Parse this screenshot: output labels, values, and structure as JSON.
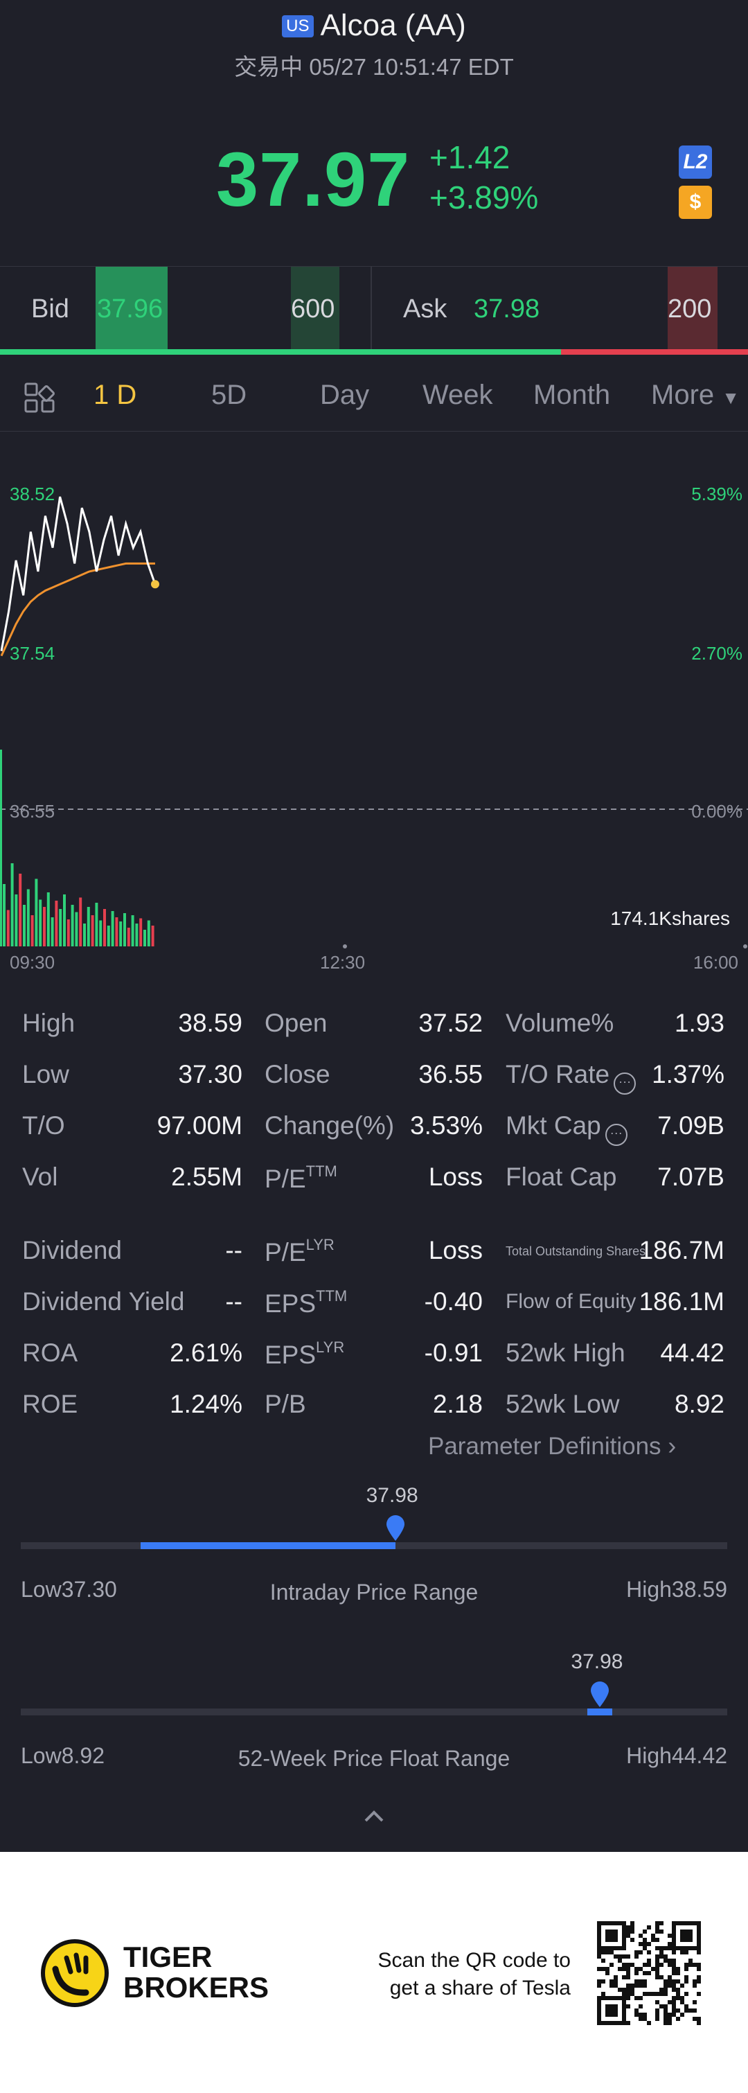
{
  "header": {
    "market_badge": "US",
    "title": "Alcoa (AA)",
    "status": "交易中 05/27 10:51:47 EDT",
    "price": "37.97",
    "change": "+1.42",
    "change_pct": "+3.89%",
    "l2_badge": "L2",
    "dollar_badge": "$",
    "up_color": "#2fd27a"
  },
  "bidask": {
    "bid_label": "Bid",
    "bid_price": "37.96",
    "bid_qty": "600",
    "ask_label": "Ask",
    "ask_price": "37.98",
    "ask_qty": "200",
    "bid_ratio": 0.75
  },
  "tabs": {
    "items": [
      "1 D",
      "5D",
      "Day",
      "Week",
      "Month",
      "More"
    ],
    "active": "1 D"
  },
  "chart_data": {
    "type": "line",
    "series": [
      {
        "values": [
          37.55,
          37.8,
          38.12,
          37.9,
          38.3,
          38.05,
          38.4,
          38.2,
          38.52,
          38.35,
          38.1,
          38.45,
          38.3,
          38.05,
          38.25,
          38.4,
          38.15,
          38.35,
          38.2,
          38.3,
          38.1,
          37.97
        ]
      },
      {
        "values": [
          37.52,
          37.62,
          37.72,
          37.8,
          37.86,
          37.9,
          37.93,
          37.95,
          37.97,
          37.99,
          38.01,
          38.03,
          38.05,
          38.06,
          38.07,
          38.08,
          38.09,
          38.1,
          38.1,
          38.1,
          38.1,
          38.1
        ]
      }
    ],
    "high_label": "38.52",
    "low_label": "37.54",
    "prev_close_label": "36.55",
    "right_top": "5.39%",
    "right_mid": "2.70%",
    "right_base": "0.00%",
    "volume_label": "174.1Kshares",
    "x_ticks": [
      "09:30",
      "12:30",
      "16:00"
    ],
    "volume_bars": [
      60,
      35,
      80,
      50,
      70,
      40,
      55,
      30,
      65,
      45,
      38,
      52,
      28,
      44,
      36,
      50,
      26,
      40,
      33,
      47,
      22,
      38,
      30,
      42,
      25,
      36,
      20,
      34,
      28,
      24,
      32,
      18,
      30,
      22,
      27,
      16,
      25,
      20
    ]
  },
  "stats": {
    "col1": [
      {
        "label": "High",
        "value": "38.59"
      },
      {
        "label": "Low",
        "value": "37.30"
      },
      {
        "label": "T/O",
        "value": "97.00M"
      },
      {
        "label": "Vol",
        "value": "2.55M"
      },
      {
        "label": "Dividend",
        "value": "--"
      },
      {
        "label": "Dividend Yield",
        "value": "--"
      },
      {
        "label": "ROA",
        "value": "2.61%"
      },
      {
        "label": "ROE",
        "value": "1.24%"
      }
    ],
    "col2": [
      {
        "label": "Open",
        "value": "37.52"
      },
      {
        "label": "Close",
        "value": "36.55"
      },
      {
        "label": "Change(%)",
        "value": "3.53%"
      },
      {
        "label": "P/E",
        "sup": "TTM",
        "value": "Loss"
      },
      {
        "label": "P/E",
        "sup": "LYR",
        "value": "Loss"
      },
      {
        "label": "EPS",
        "sup": "TTM",
        "value": "-0.40"
      },
      {
        "label": "EPS",
        "sup": "LYR",
        "value": "-0.91"
      },
      {
        "label": "P/B",
        "value": "2.18"
      }
    ],
    "col3": [
      {
        "label": "Volume%",
        "value": "1.93"
      },
      {
        "label": "T/O Rate",
        "value": "1.37%"
      },
      {
        "label": "Mkt Cap",
        "value": "7.09B"
      },
      {
        "label": "Float Cap",
        "value": "7.07B"
      },
      {
        "label": "Total Outstanding Shares",
        "value": "186.7M"
      },
      {
        "label": "Flow of Equity",
        "value": "186.1M"
      },
      {
        "label": "52wk High",
        "value": "44.42"
      },
      {
        "label": "52wk Low",
        "value": "8.92"
      }
    ],
    "param_link": "Parameter Definitions"
  },
  "intraday": {
    "current": "37.98",
    "low": "Low37.30",
    "high": "High38.59",
    "title": "Intraday Price Range",
    "fill_start": 0.17,
    "position": 0.53
  },
  "week52": {
    "current": "37.98",
    "low": "Low8.92",
    "high": "High44.42",
    "title": "52-Week Price Float Range",
    "position": 0.82
  },
  "footer": {
    "brand_line1": "TIGER",
    "brand_line2": "BROKERS",
    "cta_line1": "Scan the QR code to",
    "cta_line2": "get a share of Tesla"
  }
}
